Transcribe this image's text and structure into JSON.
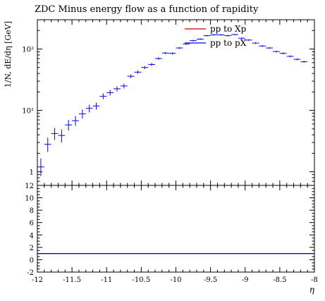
{
  "chart_data": [
    {
      "type": "scatter",
      "title": "ZDC Minus energy flow as a function of rapidity",
      "xlabel": "η",
      "ylabel": "1/N, dE/dη [GeV]",
      "yscale": "log",
      "xlim": [
        -12,
        -8
      ],
      "ylim": [
        0.6,
        300
      ],
      "y_ticks": [
        {
          "value": 1,
          "label": "1"
        },
        {
          "value": 10,
          "label": "10¹"
        },
        {
          "value": 100,
          "label": "10²"
        }
      ],
      "legend": {
        "position": "top-right",
        "entries": [
          {
            "name": "pp to Xp",
            "color": "#cc0000"
          },
          {
            "name": "pp to pX",
            "color": "#0000ff"
          }
        ]
      },
      "series": [
        {
          "name": "pp to pX",
          "color": "#0000ff",
          "bin_width": 0.1,
          "x": [
            -11.95,
            -11.85,
            -11.75,
            -11.65,
            -11.55,
            -11.45,
            -11.35,
            -11.25,
            -11.15,
            -11.05,
            -10.95,
            -10.85,
            -10.75,
            -10.65,
            -10.55,
            -10.45,
            -10.35,
            -10.25,
            -10.15,
            -10.05,
            -9.95,
            -9.85,
            -9.75,
            -9.65,
            -9.55,
            -9.45,
            -9.35,
            -9.25,
            -9.15,
            -9.05,
            -8.95,
            -8.85,
            -8.75,
            -8.65,
            -8.55,
            -8.45,
            -8.35,
            -8.25,
            -8.15
          ],
          "y": [
            1.2,
            2.8,
            4.2,
            3.9,
            5.8,
            6.8,
            8.8,
            10.8,
            11.8,
            17,
            19.5,
            22.5,
            25,
            36,
            42,
            50,
            56,
            70,
            86,
            85,
            104,
            121,
            137,
            145,
            165,
            170,
            170,
            165,
            172,
            150,
            140,
            125,
            112,
            104,
            91,
            85,
            76,
            68,
            62
          ],
          "y_err_low": [
            0.35,
            0.7,
            0.9,
            0.9,
            1.1,
            1.2,
            1.4,
            1.5,
            1.5,
            1.8,
            2.0,
            2.1,
            2.2,
            2.6,
            2.7,
            2.9,
            3.1,
            3.3,
            3.5,
            3.5,
            3.8,
            4,
            4.2,
            4.3,
            4.5,
            4.6,
            4.6,
            4.5,
            4.6,
            4.3,
            4.1,
            3.9,
            3.6,
            3.4,
            3.1,
            2.9,
            2.6,
            2.3,
            2.1
          ],
          "y_err_high": [
            0.45,
            0.8,
            1.0,
            1.0,
            1.2,
            1.3,
            1.5,
            1.6,
            1.6,
            1.9,
            2.1,
            2.2,
            2.3,
            2.7,
            2.8,
            3,
            3.2,
            3.4,
            3.6,
            3.6,
            3.9,
            4.1,
            4.3,
            4.4,
            4.6,
            4.7,
            4.7,
            4.6,
            4.7,
            4.4,
            4.2,
            4,
            3.7,
            3.5,
            3.2,
            3,
            2.7,
            2.4,
            2.2
          ]
        }
      ]
    },
    {
      "type": "line",
      "xlabel": "η",
      "xlim": [
        -12,
        -8
      ],
      "ylim": [
        -2,
        12
      ],
      "x_ticks": [
        {
          "value": -12,
          "label": "-12"
        },
        {
          "value": -11.5,
          "label": "-11.5"
        },
        {
          "value": -11,
          "label": "-11"
        },
        {
          "value": -10.5,
          "label": "-10.5"
        },
        {
          "value": -10,
          "label": "-10"
        },
        {
          "value": -9.5,
          "label": "-9.5"
        },
        {
          "value": -9,
          "label": "-9"
        },
        {
          "value": -8.5,
          "label": "-8.5"
        },
        {
          "value": -8,
          "label": "-8"
        }
      ],
      "y_ticks": [
        {
          "value": -2,
          "label": "-2"
        },
        {
          "value": 0,
          "label": "0"
        },
        {
          "value": 2,
          "label": "2"
        },
        {
          "value": 4,
          "label": "4"
        },
        {
          "value": 6,
          "label": "6"
        },
        {
          "value": 8,
          "label": "8"
        },
        {
          "value": 10,
          "label": "10"
        },
        {
          "value": 12,
          "label": "12"
        }
      ],
      "series": [
        {
          "color": "#cc0000",
          "x": [
            -12,
            -8
          ],
          "y": [
            1,
            1
          ]
        },
        {
          "color": "#0000ff",
          "x": [
            -12,
            -8
          ],
          "y": [
            1,
            1
          ]
        }
      ]
    }
  ]
}
